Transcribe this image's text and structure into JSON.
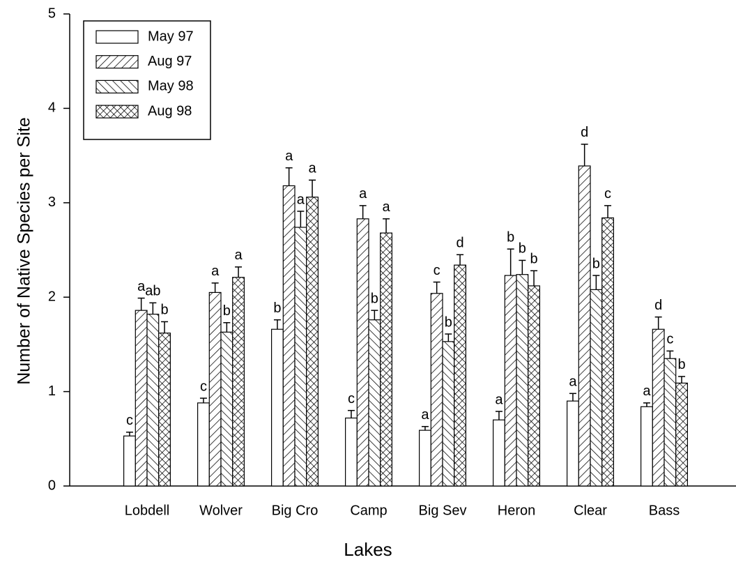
{
  "chart_data": {
    "type": "bar",
    "xlabel": "Lakes",
    "ylabel": "Number of Native Species per Site",
    "categories": [
      "Lobdell",
      "Wolver",
      "Big Cro",
      "Camp",
      "Big Sev",
      "Heron",
      "Clear",
      "Bass"
    ],
    "ylim": [
      0,
      5
    ],
    "yticks": [
      0,
      1,
      2,
      3,
      4,
      5
    ],
    "legend": "upper left",
    "series": [
      {
        "name": "May 97",
        "color": "#000000",
        "pattern": "none",
        "values": [
          0.53,
          0.88,
          1.66,
          0.72,
          0.59,
          0.7,
          0.9,
          0.84
        ],
        "errors": [
          0.04,
          0.05,
          0.1,
          0.08,
          0.04,
          0.09,
          0.08,
          0.04
        ],
        "letters": [
          "c",
          "c",
          "b",
          "c",
          "a",
          "a",
          "a",
          "a"
        ]
      },
      {
        "name": "Aug 97",
        "color": "#000000",
        "pattern": "hatch-forward",
        "values": [
          1.86,
          2.05,
          3.18,
          2.83,
          2.04,
          2.23,
          3.39,
          1.66
        ],
        "errors": [
          0.13,
          0.1,
          0.19,
          0.14,
          0.12,
          0.28,
          0.23,
          0.13
        ],
        "letters": [
          "a",
          "a",
          "a",
          "a",
          "c",
          "b",
          "d",
          "d"
        ]
      },
      {
        "name": "May 98",
        "color": "#000000",
        "pattern": "hatch-back",
        "values": [
          1.82,
          1.63,
          2.74,
          1.76,
          1.53,
          2.24,
          2.08,
          1.35
        ],
        "errors": [
          0.12,
          0.1,
          0.17,
          0.1,
          0.08,
          0.15,
          0.15,
          0.08
        ],
        "letters": [
          "ab",
          "b",
          "a",
          "b",
          "b",
          "b",
          "b",
          "c"
        ]
      },
      {
        "name": "Aug 98",
        "color": "#000000",
        "pattern": "crosshatch",
        "values": [
          1.62,
          2.21,
          3.06,
          2.68,
          2.34,
          2.12,
          2.84,
          1.09
        ],
        "errors": [
          0.12,
          0.11,
          0.18,
          0.15,
          0.11,
          0.16,
          0.13,
          0.07
        ],
        "letters": [
          "b",
          "a",
          "a",
          "a",
          "d",
          "b",
          "c",
          "b"
        ]
      }
    ]
  }
}
